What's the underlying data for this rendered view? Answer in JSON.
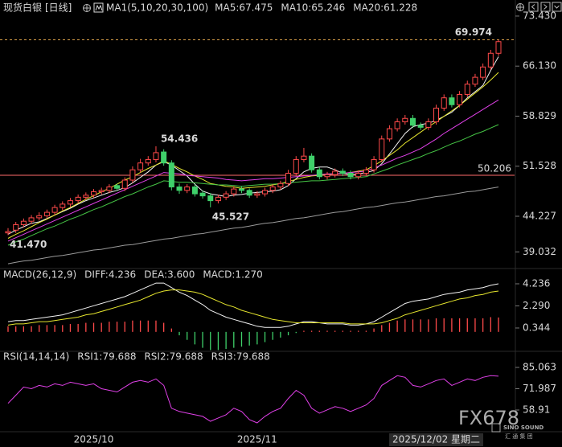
{
  "header": {
    "instrument": "现货白银",
    "period": "[日线]",
    "indicator": "MA1(5,10,20,30,100)"
  },
  "chart_data": [
    {
      "type": "candlestick",
      "categories": [
        null,
        null,
        null,
        null,
        null,
        null,
        null,
        null,
        null,
        null,
        null,
        "2025/10",
        null,
        null,
        null,
        null,
        null,
        null,
        null,
        null,
        null,
        null,
        null,
        null,
        null,
        null,
        null,
        null,
        null,
        null,
        null,
        null,
        "2025/11",
        null,
        null,
        null,
        null,
        null,
        null,
        null,
        null,
        null,
        null,
        null,
        null,
        null,
        null,
        null,
        null,
        null,
        null,
        null,
        null,
        null,
        null,
        "2025/12/02 星期二",
        null,
        null,
        null,
        null,
        null,
        null,
        null,
        null
      ],
      "open": [
        41.8,
        42.2,
        43.0,
        43.5,
        44.0,
        44.3,
        44.8,
        45.5,
        46.0,
        46.5,
        47.0,
        47.3,
        47.8,
        48.0,
        48.7,
        48.3,
        49.5,
        51.0,
        52.0,
        52.5,
        53.6,
        52.0,
        48.5,
        48.0,
        48.5,
        47.6,
        47.2,
        46.5,
        47.0,
        47.5,
        48.2,
        48.0,
        47.3,
        47.5,
        48.0,
        48.5,
        49.0,
        50.5,
        52.5,
        53.0,
        51.0,
        50.0,
        50.3,
        50.8,
        50.5,
        50.0,
        50.5,
        51.0,
        52.5,
        55.5,
        57.0,
        58.0,
        58.5,
        57.5,
        57.2,
        58.0,
        60.0,
        61.5,
        60.5,
        62.0,
        63.5,
        64.5,
        66.0,
        68.0
      ],
      "high": [
        42.5,
        43.4,
        43.9,
        44.4,
        44.8,
        45.2,
        45.9,
        46.4,
        46.9,
        47.4,
        47.7,
        48.2,
        48.4,
        48.9,
        49.0,
        49.9,
        51.5,
        52.6,
        53.0,
        54.436,
        54.0,
        52.4,
        49.0,
        48.9,
        48.9,
        48.0,
        47.6,
        47.4,
        47.9,
        48.6,
        48.6,
        48.3,
        47.9,
        48.4,
        48.9,
        49.4,
        51.0,
        53.0,
        54.2,
        53.4,
        51.4,
        50.7,
        51.2,
        51.2,
        50.9,
        50.9,
        51.4,
        53.0,
        56.0,
        57.5,
        58.5,
        59.0,
        59.0,
        57.9,
        58.5,
        60.5,
        62.0,
        62.0,
        62.5,
        64.0,
        65.0,
        66.5,
        68.5,
        69.974
      ],
      "low": [
        41.47,
        41.8,
        42.6,
        43.1,
        43.6,
        43.9,
        44.4,
        45.1,
        45.6,
        46.1,
        46.6,
        46.9,
        47.4,
        47.6,
        47.9,
        47.9,
        49.1,
        50.6,
        51.6,
        52.1,
        51.6,
        48.0,
        47.5,
        47.6,
        47.1,
        46.8,
        45.527,
        46.1,
        46.6,
        47.1,
        47.6,
        46.9,
        46.9,
        47.1,
        47.6,
        48.1,
        48.6,
        50.1,
        52.1,
        50.6,
        49.6,
        49.6,
        49.9,
        50.1,
        49.6,
        49.6,
        50.1,
        50.6,
        52.1,
        55.1,
        56.6,
        57.6,
        57.1,
        56.8,
        56.8,
        57.6,
        59.6,
        60.1,
        60.1,
        61.6,
        63.1,
        64.1,
        65.6,
        67.6
      ],
      "close": [
        42.0,
        43.0,
        43.5,
        44.0,
        44.3,
        44.8,
        45.5,
        46.0,
        46.5,
        47.0,
        47.3,
        47.8,
        48.0,
        48.5,
        48.3,
        49.5,
        51.0,
        52.0,
        52.5,
        53.5,
        52.0,
        48.5,
        48.0,
        48.5,
        47.5,
        47.2,
        46.5,
        47.0,
        47.5,
        48.2,
        48.0,
        47.3,
        47.5,
        48.0,
        48.5,
        49.0,
        50.5,
        52.5,
        53.0,
        51.0,
        50.0,
        50.3,
        50.8,
        50.5,
        50.0,
        50.5,
        51.0,
        52.5,
        55.5,
        57.0,
        58.0,
        58.5,
        57.5,
        57.2,
        58.0,
        60.0,
        61.5,
        60.5,
        62.0,
        63.5,
        64.5,
        66.0,
        68.0,
        69.7
      ],
      "up_color": "#ff4a4a",
      "down_color": "#3fd06a",
      "series": [
        {
          "name": "MA5:67.475",
          "color": "#f2f2f2",
          "values": [
            41.6,
            42.2,
            42.7,
            43.2,
            43.4,
            43.9,
            44.4,
            44.9,
            45.4,
            46.0,
            46.5,
            46.9,
            47.3,
            47.7,
            48.0,
            48.4,
            49.1,
            49.9,
            50.7,
            51.7,
            52.2,
            51.7,
            50.9,
            50.1,
            48.9,
            47.9,
            47.5,
            47.3,
            47.1,
            47.3,
            47.4,
            47.6,
            47.7,
            47.8,
            47.9,
            48.1,
            48.7,
            49.7,
            50.7,
            51.2,
            51.4,
            51.4,
            51.0,
            50.5,
            50.3,
            50.4,
            50.6,
            50.9,
            51.9,
            53.3,
            54.8,
            56.3,
            57.3,
            57.6,
            57.8,
            58.2,
            58.8,
            59.4,
            60.4,
            61.5,
            62.4,
            63.3,
            65.5,
            67.5
          ]
        },
        {
          "name": "MA10:65.246",
          "color": "#e6e62e",
          "values": [
            41.0,
            41.6,
            42.1,
            42.7,
            43.3,
            43.8,
            44.4,
            45.0,
            45.5,
            46.1,
            46.7,
            47.2,
            47.8,
            48.3,
            48.9,
            49.5,
            50.0,
            50.6,
            51.2,
            51.7,
            52.3,
            51.8,
            51.2,
            50.7,
            50.1,
            49.6,
            49.0,
            48.8,
            48.6,
            48.5,
            48.3,
            48.4,
            48.5,
            48.6,
            48.8,
            49.0,
            49.3,
            49.6,
            49.9,
            50.1,
            50.2,
            50.3,
            50.4,
            50.5,
            50.6,
            50.8,
            51.0,
            51.6,
            52.3,
            53.1,
            53.9,
            54.9,
            55.7,
            56.5,
            57.3,
            58.0,
            58.8,
            59.6,
            60.4,
            61.3,
            62.2,
            63.1,
            64.1,
            65.2
          ]
        },
        {
          "name": "MA20:61.228",
          "color": "#e040e8",
          "values": [
            40.6,
            41.1,
            41.6,
            42.1,
            42.6,
            43.1,
            43.6,
            44.1,
            44.6,
            45.1,
            45.6,
            46.1,
            46.6,
            47.1,
            47.6,
            48.1,
            48.6,
            49.1,
            49.6,
            50.1,
            50.6,
            50.5,
            50.4,
            50.2,
            50.1,
            50.0,
            49.9,
            49.8,
            49.6,
            49.5,
            49.4,
            49.5,
            49.6,
            49.7,
            49.7,
            49.8,
            49.9,
            50.0,
            50.1,
            50.2,
            50.3,
            50.4,
            50.4,
            50.5,
            50.6,
            50.7,
            50.8,
            51.3,
            51.7,
            52.2,
            52.7,
            53.1,
            53.6,
            54.1,
            54.8,
            55.5,
            56.3,
            57.0,
            57.7,
            58.4,
            59.1,
            59.8,
            60.5,
            61.2
          ]
        },
        {
          "color": "#45c445",
          "values": [
            40.0,
            40.5,
            40.9,
            41.4,
            41.9,
            42.4,
            42.8,
            43.3,
            43.8,
            44.2,
            44.7,
            45.2,
            45.6,
            46.1,
            46.6,
            47.1,
            47.5,
            48.0,
            48.5,
            48.9,
            49.4,
            49.3,
            49.2,
            49.2,
            49.1,
            49.0,
            48.9,
            48.8,
            48.8,
            48.7,
            48.6,
            48.7,
            48.8,
            48.9,
            48.9,
            49.0,
            49.1,
            49.2,
            49.3,
            49.4,
            49.4,
            49.5,
            49.6,
            49.7,
            49.8,
            49.9,
            50.0,
            50.4,
            50.8,
            51.2,
            51.7,
            52.1,
            52.5,
            52.9,
            53.4,
            53.8,
            54.3,
            54.8,
            55.2,
            55.7,
            56.2,
            56.6,
            57.1,
            57.6
          ]
        },
        {
          "color": "#9a9a9a",
          "values": [
            37.3,
            37.5,
            37.7,
            37.8,
            38.0,
            38.2,
            38.4,
            38.5,
            38.7,
            38.9,
            39.1,
            39.3,
            39.4,
            39.6,
            39.8,
            40.0,
            40.1,
            40.3,
            40.5,
            40.7,
            40.9,
            41.0,
            41.2,
            41.4,
            41.6,
            41.7,
            41.9,
            42.1,
            42.3,
            42.5,
            42.6,
            42.8,
            43.0,
            43.2,
            43.3,
            43.5,
            43.7,
            43.9,
            44.0,
            44.2,
            44.4,
            44.6,
            44.8,
            44.9,
            45.1,
            45.3,
            45.5,
            45.6,
            45.8,
            46.0,
            46.2,
            46.3,
            46.5,
            46.7,
            46.9,
            47.1,
            47.2,
            47.4,
            47.6,
            47.8,
            47.9,
            48.1,
            48.3,
            48.5
          ]
        }
      ],
      "ylim": [
        36.72,
        75.42
      ],
      "yticks": [
        {
          "value": 73.43,
          "label": "73.430"
        },
        {
          "value": 66.13,
          "label": "66.130"
        },
        58.829,
        51.528,
        44.227,
        39.032
      ],
      "annotations": {
        "high_labels": [
          54.436,
          69.974
        ],
        "low_labels": [
          45.527,
          {
            "value": 41.47,
            "label": "41.470"
          }
        ],
        "high_color": "#ff4a4a",
        "low_color": "#3fd06a",
        "hlines": [
          {
            "value": 50.206,
            "color": "#ff6b6b",
            "dashed": false,
            "labeled": true
          },
          {
            "value": 69.974,
            "color": "#d9a04a",
            "dashed": true,
            "labeled": false
          }
        ]
      }
    },
    {
      "type": "macd",
      "title": "MACD(26,12,9)",
      "series": [
        {
          "name": "DIFF:4.236",
          "color": "#f2f2f2",
          "values": [
            0.9,
            1.0,
            1.0,
            1.1,
            1.2,
            1.3,
            1.4,
            1.5,
            1.7,
            1.9,
            2.1,
            2.3,
            2.5,
            2.7,
            2.9,
            3.1,
            3.4,
            3.7,
            4.0,
            4.3,
            4.3,
            3.9,
            3.5,
            3.2,
            2.8,
            2.4,
            1.9,
            1.6,
            1.3,
            1.1,
            0.9,
            0.7,
            0.5,
            0.4,
            0.4,
            0.4,
            0.5,
            0.7,
            0.9,
            0.9,
            0.8,
            0.7,
            0.7,
            0.7,
            0.6,
            0.6,
            0.7,
            0.9,
            1.3,
            1.7,
            2.1,
            2.5,
            2.7,
            2.8,
            2.9,
            3.1,
            3.3,
            3.4,
            3.5,
            3.7,
            3.8,
            3.9,
            4.1,
            4.236
          ]
        },
        {
          "name": "DEA:3.600",
          "color": "#e6e62e",
          "values": [
            0.6,
            0.7,
            0.7,
            0.8,
            0.9,
            0.9,
            1.0,
            1.1,
            1.2,
            1.3,
            1.5,
            1.6,
            1.8,
            2.0,
            2.2,
            2.4,
            2.6,
            2.8,
            3.1,
            3.4,
            3.6,
            3.7,
            3.7,
            3.6,
            3.5,
            3.3,
            3.0,
            2.7,
            2.4,
            2.2,
            1.9,
            1.7,
            1.5,
            1.3,
            1.1,
            1.0,
            0.9,
            0.8,
            0.8,
            0.8,
            0.8,
            0.8,
            0.8,
            0.8,
            0.7,
            0.7,
            0.7,
            0.7,
            0.8,
            1.0,
            1.2,
            1.5,
            1.7,
            1.9,
            2.1,
            2.3,
            2.5,
            2.7,
            2.9,
            3.0,
            3.2,
            3.3,
            3.5,
            3.6
          ]
        },
        {
          "name": "MACD:1.270",
          "color": "#e040e8",
          "bar": true,
          "up_color": "#ff4a4a",
          "down_color": "#3fd06a",
          "values": [
            0.5,
            0.5,
            0.5,
            0.5,
            0.6,
            0.6,
            0.6,
            0.6,
            0.7,
            0.7,
            0.8,
            0.8,
            0.8,
            0.9,
            0.9,
            0.9,
            1.0,
            1.0,
            1.0,
            1.0,
            0.8,
            0.3,
            -0.3,
            -0.7,
            -1.1,
            -1.4,
            -1.6,
            -1.6,
            -1.5,
            -1.4,
            -1.3,
            -1.2,
            -1.1,
            -0.9,
            -0.7,
            -0.5,
            -0.3,
            -0.1,
            0.1,
            0.1,
            0.1,
            0.1,
            0.1,
            0.1,
            0.1,
            0.1,
            0.1,
            0.3,
            0.6,
            0.8,
            1.0,
            1.1,
            1.1,
            1.1,
            1.1,
            1.2,
            1.2,
            1.2,
            1.2,
            1.2,
            1.2,
            1.2,
            1.3,
            1.27
          ]
        }
      ],
      "ylim": [
        -1.64,
        5.51
      ],
      "yticks": [
        4.236,
        {
          "value": 2.29,
          "label": "2.290"
        },
        0.344
      ]
    },
    {
      "type": "line",
      "title": "RSI(14,14,14)",
      "legend": [
        {
          "text": "RSI1:79.688",
          "color": "#f2f2f2"
        },
        {
          "text": "RSI2:79.688",
          "color": "#e6e62e"
        }
      ],
      "series": [
        {
          "name": "RSI3:79.688",
          "color": "#e040e8",
          "values": [
            63,
            68,
            73,
            72,
            74,
            73,
            75,
            74,
            76,
            75,
            74,
            75,
            72,
            71,
            70,
            73,
            76,
            77,
            76,
            78,
            74,
            60,
            58,
            57,
            56,
            55,
            52,
            54,
            56,
            60,
            58,
            53,
            51,
            55,
            58,
            60,
            66,
            71,
            68,
            60,
            57,
            59,
            61,
            60,
            58,
            60,
            62,
            66,
            74,
            77,
            80,
            79,
            74,
            73,
            75,
            77,
            78,
            74,
            76,
            78,
            77,
            79,
            80,
            79.688
          ]
        }
      ],
      "ylim": [
        46.08,
        93.45
      ],
      "yticks": [
        85.063,
        71.987,
        58.91
      ]
    }
  ],
  "watermark": {
    "brand": "FX678",
    "company": "SINO SOUND",
    "company_cn": "汇 通 集 团"
  }
}
